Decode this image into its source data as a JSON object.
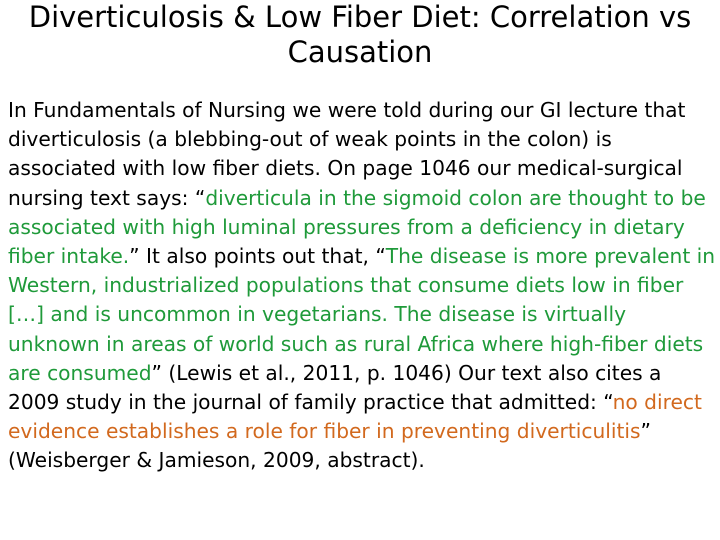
{
  "slide": {
    "title": "Diverticulosis & Low Fiber Diet: Correlation vs Causation",
    "paragraph": [
      {
        "text": "In Fundamentals of Nursing we were told during our GI lecture that diverticulosis (a blebbing-out of weak points in the colon) is associated with low fiber diets. On page 1046 our medical-surgical nursing text says: “",
        "style": "normal"
      },
      {
        "text": "diverticula in the sigmoid colon are thought to be associated with high luminal pressures from a deficiency in dietary fiber intake.",
        "style": "green"
      },
      {
        "text": "” It also points out that, “",
        "style": "normal"
      },
      {
        "text": "The disease is more prevalent in Western, industrialized populations that consume diets low in fiber […] and is uncommon in vegetarians. The disease is virtually unknown in areas of world such as rural Africa where high-fiber diets are consumed",
        "style": "green"
      },
      {
        "text": "” (Lewis et al., 2011, p. 1046) Our text also cites a 2009 study in the journal of family practice that admitted: “",
        "style": "normal"
      },
      {
        "text": "no direct evidence establishes a role for fiber in preventing diverticulitis",
        "style": "orange"
      },
      {
        "text": "” (Weisberger & Jamieson, 2009, abstract).",
        "style": "normal"
      }
    ]
  },
  "colors": {
    "text": "#000000",
    "green_quote": "#1f9a3a",
    "orange_quote": "#d2691e",
    "background": "#ffffff"
  }
}
